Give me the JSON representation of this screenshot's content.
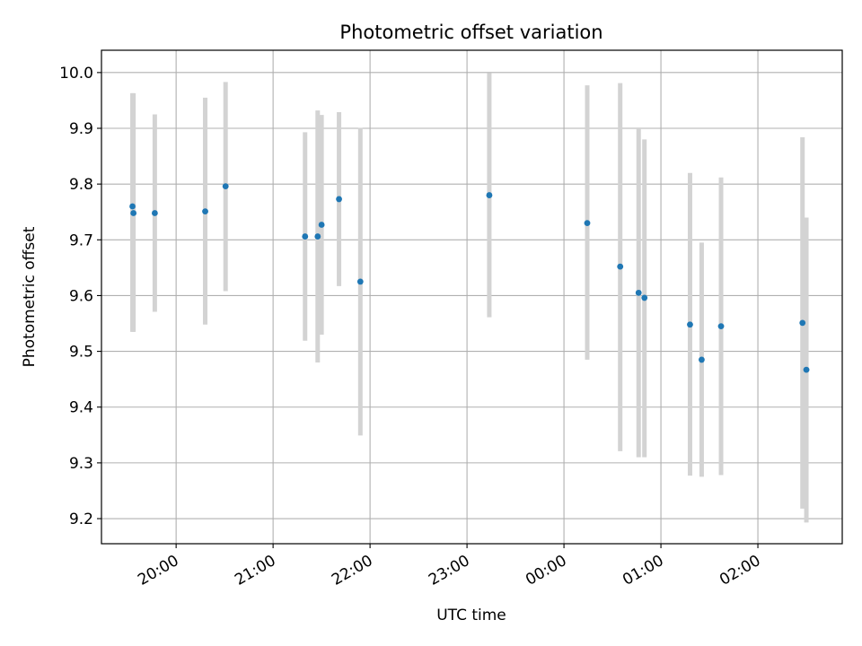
{
  "chart_data": {
    "type": "scatter",
    "title": "Photometric offset variation",
    "xlabel": "UTC time",
    "ylabel": "Photometric offset",
    "grid": true,
    "ylim": [
      9.155,
      10.04
    ],
    "xlim_hours": [
      19.23,
      26.87
    ],
    "y_ticks": [
      9.2,
      9.3,
      9.4,
      9.5,
      9.6,
      9.7,
      9.8,
      9.9,
      10.0
    ],
    "y_tick_labels": [
      "9.2",
      "9.3",
      "9.4",
      "9.5",
      "9.6",
      "9.7",
      "9.8",
      "9.9",
      "10.0"
    ],
    "x_ticks_hours": [
      20,
      21,
      22,
      23,
      24,
      25,
      26
    ],
    "x_tick_labels": [
      "20:00",
      "21:00",
      "22:00",
      "23:00",
      "00:00",
      "01:00",
      "02:00"
    ],
    "colors": {
      "point": "#1f77b4",
      "errorbar": "#d3d3d3",
      "grid": "#b0b0b0"
    },
    "points": [
      {
        "t": 19.55,
        "y": 9.76,
        "ylow": 9.535,
        "yhigh": 9.963
      },
      {
        "t": 19.56,
        "y": 9.748,
        "ylow": 9.535,
        "yhigh": 9.963
      },
      {
        "t": 19.78,
        "y": 9.748,
        "ylow": 9.571,
        "yhigh": 9.925
      },
      {
        "t": 20.3,
        "y": 9.751,
        "ylow": 9.548,
        "yhigh": 9.955
      },
      {
        "t": 20.51,
        "y": 9.796,
        "ylow": 9.608,
        "yhigh": 9.983
      },
      {
        "t": 21.33,
        "y": 9.706,
        "ylow": 9.519,
        "yhigh": 9.893
      },
      {
        "t": 21.46,
        "y": 9.706,
        "ylow": 9.48,
        "yhigh": 9.932
      },
      {
        "t": 21.5,
        "y": 9.727,
        "ylow": 9.53,
        "yhigh": 9.924
      },
      {
        "t": 21.68,
        "y": 9.773,
        "ylow": 9.617,
        "yhigh": 9.929
      },
      {
        "t": 21.9,
        "y": 9.625,
        "ylow": 9.349,
        "yhigh": 9.901
      },
      {
        "t": 23.23,
        "y": 9.78,
        "ylow": 9.561,
        "yhigh": 9.999
      },
      {
        "t": 24.24,
        "y": 9.73,
        "ylow": 9.485,
        "yhigh": 9.977
      },
      {
        "t": 24.58,
        "y": 9.652,
        "ylow": 9.321,
        "yhigh": 9.981
      },
      {
        "t": 24.77,
        "y": 9.605,
        "ylow": 9.31,
        "yhigh": 9.9
      },
      {
        "t": 24.83,
        "y": 9.596,
        "ylow": 9.31,
        "yhigh": 9.88
      },
      {
        "t": 25.3,
        "y": 9.548,
        "ylow": 9.277,
        "yhigh": 9.82
      },
      {
        "t": 25.42,
        "y": 9.485,
        "ylow": 9.275,
        "yhigh": 9.695
      },
      {
        "t": 25.62,
        "y": 9.545,
        "ylow": 9.278,
        "yhigh": 9.812
      },
      {
        "t": 26.46,
        "y": 9.551,
        "ylow": 9.218,
        "yhigh": 9.884
      },
      {
        "t": 26.5,
        "y": 9.467,
        "ylow": 9.193,
        "yhigh": 9.74
      }
    ]
  }
}
